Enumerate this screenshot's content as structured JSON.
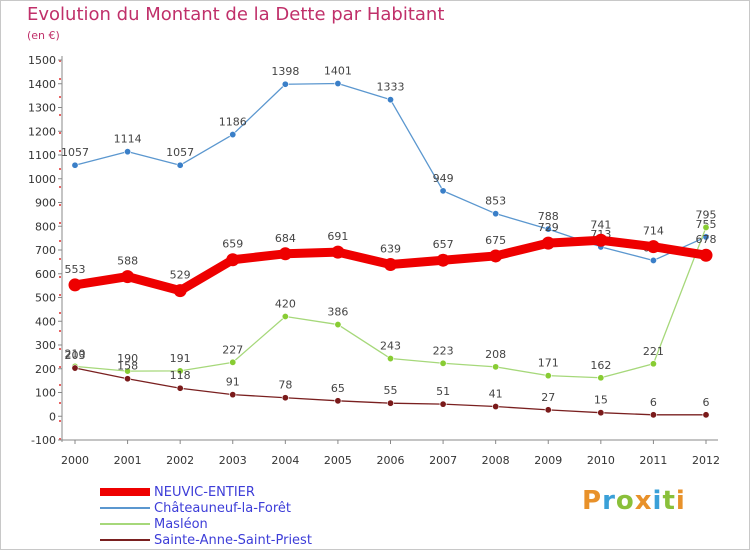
{
  "header": {
    "title": "Evolution du Montant de la Dette par Habitant",
    "subtitle": "(en €)"
  },
  "logo": {
    "text": "Proxiti",
    "colors": [
      "#e8912a",
      "#3aa0d8",
      "#8ac03a",
      "#e8912a",
      "#3aa0d8",
      "#8ac03a",
      "#e8912a"
    ]
  },
  "chart_data": {
    "type": "line",
    "title": "Evolution du Montant de la Dette par Habitant",
    "ylabel": "(en €)",
    "xlabel": "",
    "x": [
      "2000",
      "2001",
      "2002",
      "2003",
      "2004",
      "2005",
      "2006",
      "2007",
      "2008",
      "2009",
      "2010",
      "2011",
      "2012"
    ],
    "ylim": [
      -100,
      1500
    ],
    "yticks": [
      "-100",
      "0",
      "100",
      "200",
      "300",
      "400",
      "500",
      "600",
      "700",
      "800",
      "900",
      "1000",
      "1100",
      "1200",
      "1300",
      "1400",
      "1500"
    ],
    "grid": false,
    "legend_position": "bottom-left",
    "series": [
      {
        "name": "NEUVIC-ENTIER",
        "color": "#ee0000",
        "emphasis": true,
        "values": [
          553,
          588,
          529,
          659,
          684,
          691,
          639,
          657,
          675,
          729,
          741,
          714,
          678
        ]
      },
      {
        "name": "Châteauneuf-la-Forêt",
        "color": "#5b97cf",
        "marker": "#3a7fc8",
        "emphasis": false,
        "values": [
          1057,
          1114,
          1057,
          1186,
          1398,
          1401,
          1333,
          949,
          853,
          788,
          713,
          656,
          755
        ]
      },
      {
        "name": "Masléon",
        "color": "#a6d87a",
        "marker": "#88cc33",
        "emphasis": false,
        "values": [
          210,
          190,
          191,
          227,
          420,
          386,
          243,
          223,
          208,
          171,
          162,
          221,
          795
        ]
      },
      {
        "name": "Sainte-Anne-Saint-Priest",
        "color": "#7a2020",
        "marker": "#7a1a1a",
        "emphasis": false,
        "values": [
          203,
          158,
          118,
          91,
          78,
          65,
          55,
          51,
          41,
          27,
          15,
          6,
          6
        ]
      }
    ]
  }
}
